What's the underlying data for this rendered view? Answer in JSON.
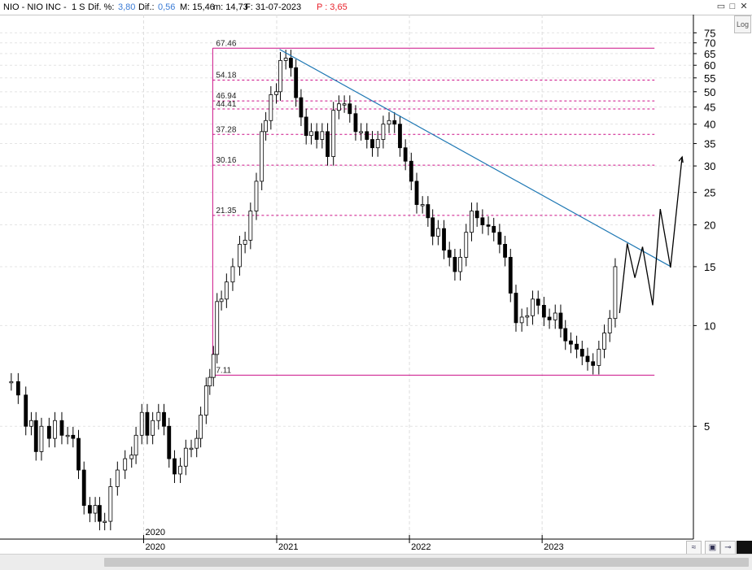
{
  "header": {
    "symbol": "NIO - NIO INC -",
    "interval": "1 S",
    "dif_pct_label": "Dif. %:",
    "dif_pct_value": "3,80",
    "dif_label": "Dif.:",
    "dif_value": "0,56",
    "max_label": "M: 15,46",
    "min_label": "m: 14,73",
    "date_label": "F: 31-07-2023",
    "price_label": "P : 3,65",
    "accent_blue": "#3a7bd5",
    "accent_red": "#e8202a"
  },
  "window_controls": [
    "restore-icon",
    "maximize-icon",
    "close-icon"
  ],
  "log_button": "Log",
  "toolbar_icons": [
    "collapse-icon",
    "save-icon",
    "pin-icon",
    "dark-square-icon"
  ],
  "chart_data": {
    "type": "candlestick",
    "title": "",
    "scale": "log",
    "ylim": [
      2.3,
      85
    ],
    "grid": true,
    "y_ticks": [
      75,
      70,
      65,
      60,
      55,
      50,
      45,
      40,
      35,
      30,
      25,
      20,
      15,
      10,
      5
    ],
    "x_ticks": [
      "2020",
      "2020",
      "2021",
      "2022",
      "2023"
    ],
    "levels": [
      {
        "label": "67.46",
        "value": 67.46,
        "style": "solid"
      },
      {
        "label": "54.18",
        "value": 54.18,
        "style": "dashed"
      },
      {
        "label": "46.94",
        "value": 46.94,
        "style": "dashed"
      },
      {
        "label": "44.41",
        "value": 44.41,
        "style": "dashed"
      },
      {
        "label": "37.28",
        "value": 37.28,
        "style": "dashed"
      },
      {
        "label": "30.16",
        "value": 30.16,
        "style": "dashed"
      },
      {
        "label": "21.35",
        "value": 21.35,
        "style": "dashed"
      },
      {
        "label": "7.11",
        "value": 7.11,
        "style": "solid"
      }
    ],
    "level_color": "#cc1188",
    "trendline": {
      "from": [
        "2021-01-08",
        66.9
      ],
      "to": [
        "2023-12-20",
        15.0
      ],
      "color": "#1f78b4"
    },
    "projection": [
      [
        "2023-08-01",
        10.9
      ],
      [
        "2023-08-22",
        17.6
      ],
      [
        "2023-09-12",
        13.9
      ],
      [
        "2023-10-03",
        17.2
      ],
      [
        "2023-10-31",
        11.5
      ],
      [
        "2023-11-21",
        22.3
      ],
      [
        "2023-12-19",
        14.9
      ],
      [
        "2024-01-20",
        31.9
      ]
    ],
    "series": [
      {
        "points": [
          [
            "2019-01-01",
            6.8
          ],
          [
            "2019-01-20",
            6.2
          ],
          [
            "2019-02-10",
            5.0
          ],
          [
            "2019-02-25",
            5.2
          ],
          [
            "2019-03-10",
            4.2
          ],
          [
            "2019-03-25",
            5.0
          ],
          [
            "2019-04-15",
            4.6
          ],
          [
            "2019-05-01",
            5.2
          ],
          [
            "2019-05-20",
            4.7
          ],
          [
            "2019-06-05",
            4.7
          ],
          [
            "2019-06-20",
            4.6
          ],
          [
            "2019-07-05",
            3.7
          ],
          [
            "2019-07-20",
            2.9
          ],
          [
            "2019-08-05",
            2.75
          ],
          [
            "2019-08-20",
            2.9
          ],
          [
            "2019-09-01",
            2.6
          ],
          [
            "2019-09-15",
            2.6
          ],
          [
            "2019-10-01",
            3.3
          ],
          [
            "2019-10-20",
            3.7
          ],
          [
            "2019-11-10",
            4.0
          ],
          [
            "2019-11-28",
            4.1
          ],
          [
            "2019-12-10",
            4.7
          ],
          [
            "2019-12-26",
            5.5
          ],
          [
            "2020-01-10",
            4.7
          ],
          [
            "2020-01-25",
            5.2
          ],
          [
            "2020-02-10",
            5.5
          ],
          [
            "2020-02-25",
            5.0
          ],
          [
            "2020-03-10",
            4.0
          ],
          [
            "2020-03-25",
            3.6
          ],
          [
            "2020-04-10",
            3.8
          ],
          [
            "2020-04-25",
            4.3
          ],
          [
            "2020-05-10",
            4.3
          ],
          [
            "2020-05-25",
            4.6
          ],
          [
            "2020-06-05",
            5.4
          ],
          [
            "2020-06-20",
            6.6
          ],
          [
            "2020-06-30",
            7.0
          ],
          [
            "2020-07-10",
            8.2
          ],
          [
            "2020-07-20",
            11.8
          ],
          [
            "2020-08-01",
            12.0
          ],
          [
            "2020-08-15",
            13.5
          ],
          [
            "2020-09-01",
            15.0
          ],
          [
            "2020-09-20",
            17.5
          ],
          [
            "2020-10-05",
            18.0
          ],
          [
            "2020-10-20",
            22.0
          ],
          [
            "2020-11-05",
            27.0
          ],
          [
            "2020-11-20",
            38.0
          ],
          [
            "2020-12-01",
            41.0
          ],
          [
            "2020-12-15",
            49.0
          ],
          [
            "2020-12-30",
            50.0
          ],
          [
            "2021-01-10",
            62.0
          ],
          [
            "2021-01-25",
            63.0
          ],
          [
            "2021-02-08",
            59.0
          ],
          [
            "2021-02-22",
            48.0
          ],
          [
            "2021-03-08",
            42.0
          ],
          [
            "2021-03-22",
            37.0
          ],
          [
            "2021-04-05",
            38.0
          ],
          [
            "2021-04-20",
            36.0
          ],
          [
            "2021-05-05",
            38.0
          ],
          [
            "2021-05-20",
            32.0
          ],
          [
            "2021-06-05",
            44.0
          ],
          [
            "2021-06-20",
            46.0
          ],
          [
            "2021-07-05",
            46.0
          ],
          [
            "2021-07-20",
            43.0
          ],
          [
            "2021-08-05",
            38.0
          ],
          [
            "2021-08-20",
            38.0
          ],
          [
            "2021-09-05",
            36.0
          ],
          [
            "2021-09-20",
            34.0
          ],
          [
            "2021-10-05",
            36.0
          ],
          [
            "2021-10-20",
            40.0
          ],
          [
            "2021-11-05",
            41.0
          ],
          [
            "2021-11-20",
            40.0
          ],
          [
            "2021-12-05",
            34.0
          ],
          [
            "2021-12-20",
            31.0
          ],
          [
            "2022-01-05",
            27.0
          ],
          [
            "2022-01-20",
            23.0
          ],
          [
            "2022-02-05",
            23.0
          ],
          [
            "2022-02-20",
            21.0
          ],
          [
            "2022-03-05",
            18.5
          ],
          [
            "2022-03-20",
            19.5
          ],
          [
            "2022-04-05",
            16.8
          ],
          [
            "2022-04-20",
            16.0
          ],
          [
            "2022-05-05",
            14.5
          ],
          [
            "2022-05-20",
            16.0
          ],
          [
            "2022-06-05",
            19.0
          ],
          [
            "2022-06-20",
            22.0
          ],
          [
            "2022-07-05",
            21.0
          ],
          [
            "2022-07-20",
            20.0
          ],
          [
            "2022-08-05",
            19.8
          ],
          [
            "2022-08-20",
            19.0
          ],
          [
            "2022-09-05",
            17.5
          ],
          [
            "2022-09-20",
            16.0
          ],
          [
            "2022-10-05",
            12.5
          ],
          [
            "2022-10-20",
            10.2
          ],
          [
            "2022-11-05",
            10.6
          ],
          [
            "2022-11-20",
            10.7
          ],
          [
            "2022-12-05",
            12.0
          ],
          [
            "2022-12-20",
            11.5
          ],
          [
            "2023-01-05",
            10.6
          ],
          [
            "2023-01-20",
            10.4
          ],
          [
            "2023-02-05",
            10.9
          ],
          [
            "2023-02-20",
            9.8
          ],
          [
            "2023-03-05",
            9.0
          ],
          [
            "2023-03-20",
            8.8
          ],
          [
            "2023-04-05",
            8.5
          ],
          [
            "2023-04-20",
            8.1
          ],
          [
            "2023-05-05",
            7.8
          ],
          [
            "2023-05-20",
            7.6
          ],
          [
            "2023-06-05",
            8.5
          ],
          [
            "2023-06-20",
            9.5
          ],
          [
            "2023-07-05",
            10.5
          ],
          [
            "2023-07-20",
            15.0
          ]
        ]
      }
    ]
  }
}
